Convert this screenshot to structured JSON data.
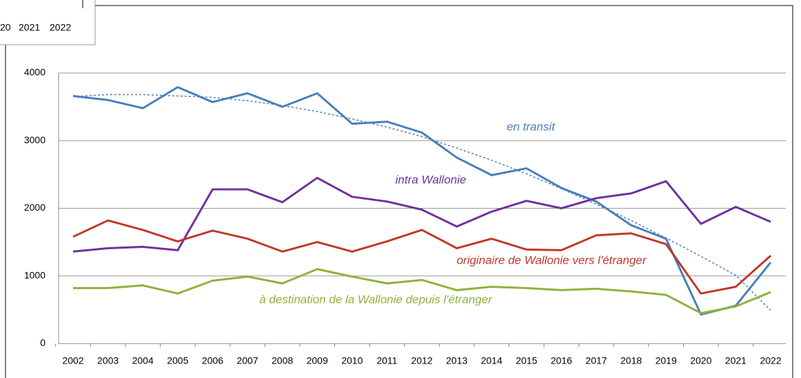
{
  "chart_data": {
    "type": "line",
    "categories": [
      "2002",
      "2003",
      "2004",
      "2005",
      "2006",
      "2007",
      "2008",
      "2009",
      "2010",
      "2011",
      "2012",
      "2013",
      "2014",
      "2015",
      "2016",
      "2017",
      "2018",
      "2019",
      "2020",
      "2021",
      "2022"
    ],
    "series": [
      {
        "name": "en transit",
        "color": "#4a7ebb",
        "values": [
          3660,
          3600,
          3480,
          3790,
          3570,
          3700,
          3500,
          3700,
          3250,
          3280,
          3120,
          2750,
          2490,
          2590,
          2300,
          2100,
          1750,
          1550,
          430,
          560,
          1200
        ]
      },
      {
        "color": "#4a7ebb",
        "style": "dotted",
        "values": [
          3650,
          3680,
          3680,
          3660,
          3640,
          3590,
          3520,
          3430,
          3320,
          3200,
          3060,
          2890,
          2710,
          2510,
          2290,
          2060,
          1820,
          1560,
          1290,
          1010,
          490
        ]
      },
      {
        "name": "intra Wallonie",
        "color": "#7030a0",
        "values": [
          1360,
          1410,
          1430,
          1380,
          2280,
          2280,
          2090,
          2450,
          2170,
          2100,
          1980,
          1730,
          1950,
          2110,
          2000,
          2150,
          2220,
          2400,
          1770,
          2020,
          1800
        ]
      },
      {
        "name": "originaire de Wallonie vers l'étranger",
        "color": "#c0392b",
        "values": [
          1580,
          1820,
          1680,
          1510,
          1670,
          1550,
          1360,
          1500,
          1360,
          1510,
          1680,
          1410,
          1550,
          1390,
          1380,
          1600,
          1630,
          1470,
          740,
          840,
          1300
        ]
      },
      {
        "name": "à destination de la Wallonie depuis l'étranger",
        "color": "#8db33a",
        "values": [
          820,
          820,
          860,
          740,
          930,
          990,
          890,
          1100,
          990,
          890,
          940,
          790,
          840,
          820,
          790,
          810,
          770,
          720,
          450,
          550,
          760
        ]
      }
    ],
    "ylim": [
      0,
      4000
    ],
    "yticks": [
      0,
      1000,
      2000,
      3000,
      4000
    ],
    "grid": true
  },
  "inset": {
    "labels": [
      "20",
      "2021",
      "2022"
    ]
  }
}
